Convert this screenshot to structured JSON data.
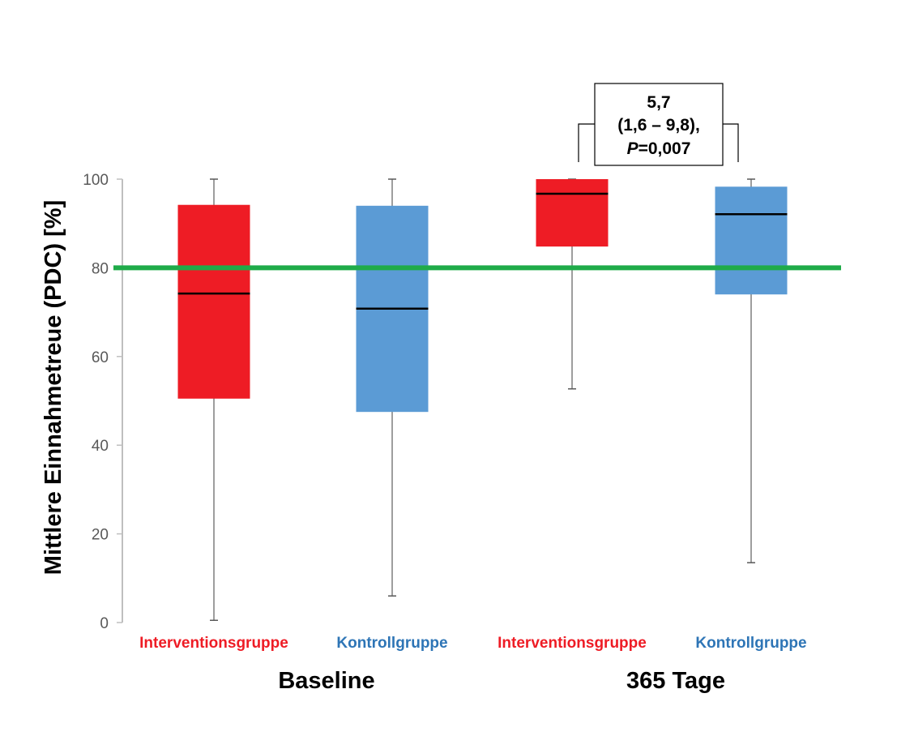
{
  "chart_data": {
    "type": "boxplot",
    "title": "",
    "xlabel": "",
    "ylabel": "Mittlere Einnahmetreue (PDC) [%]",
    "ylim": [
      0,
      100
    ],
    "yticks": [
      0,
      20,
      40,
      60,
      80,
      100
    ],
    "grid": false,
    "reference_line": {
      "value": 80,
      "color": "#1fab49"
    },
    "groups": [
      "Baseline",
      "365 Tage"
    ],
    "categories": [
      "Interventionsgruppe",
      "Kontrollgruppe",
      "Interventionsgruppe",
      "Kontrollgruppe"
    ],
    "series": [
      {
        "name": "Interventionsgruppe",
        "group": "Baseline",
        "color": "#ee1c25",
        "label_color": "#ee1c25",
        "min": 0.5,
        "q1": 50.5,
        "median": 74.2,
        "q3": 94.2,
        "max": 100
      },
      {
        "name": "Kontrollgruppe",
        "group": "Baseline",
        "color": "#5b9bd5",
        "label_color": "#2e75b6",
        "min": 6.0,
        "q1": 47.5,
        "median": 70.8,
        "q3": 94.0,
        "max": 100
      },
      {
        "name": "Interventionsgruppe",
        "group": "365 Tage",
        "color": "#ee1c25",
        "label_color": "#ee1c25",
        "min": 52.7,
        "q1": 84.8,
        "median": 96.7,
        "q3": 100,
        "max": 100
      },
      {
        "name": "Kontrollgruppe",
        "group": "365 Tage",
        "color": "#5b9bd5",
        "label_color": "#2e75b6",
        "min": 13.5,
        "q1": 74.0,
        "median": 92.1,
        "q3": 98.3,
        "max": 100
      }
    ],
    "annotation": {
      "between": [
        "Interventionsgruppe 365 Tage",
        "Kontrollgruppe 365 Tage"
      ],
      "lines": [
        "5,7",
        "(1,6 – 9,8),",
        "P",
        "=0,007"
      ]
    }
  }
}
